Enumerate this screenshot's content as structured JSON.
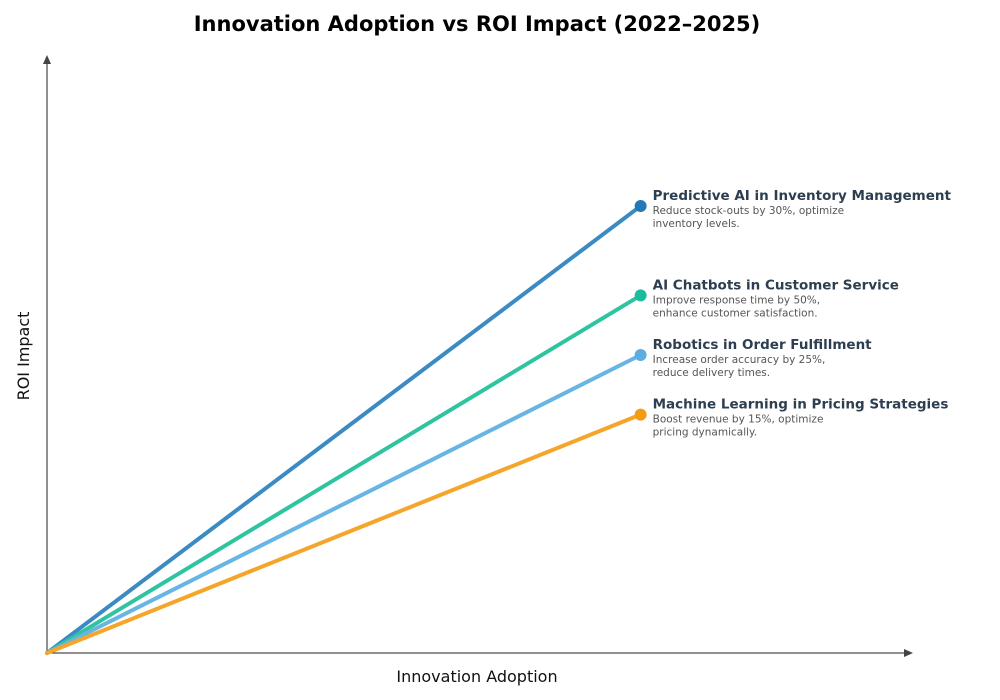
{
  "chart_data": {
    "type": "line",
    "title": "Innovation Adoption vs ROI Impact (2022–2025)",
    "xlabel": "Innovation Adoption",
    "ylabel": "ROI Impact",
    "xlim": [
      0,
      1.02
    ],
    "ylim": [
      0,
      1
    ],
    "grid": false,
    "ticks": false,
    "series": [
      {
        "name": "Predictive AI in Inventory Management",
        "description_line1": "Reduce stock-outs by 30%, optimize",
        "description_line2": "inventory levels.",
        "x": [
          0,
          0.7
        ],
        "y": [
          0,
          0.75
        ],
        "color": "#3a8bc2",
        "marker_color": "#2479b4"
      },
      {
        "name": "AI Chatbots in Customer Service",
        "description_line1": "Improve response time by 50%,",
        "description_line2": "enhance customer satisfaction.",
        "x": [
          0,
          0.7
        ],
        "y": [
          0,
          0.6
        ],
        "color": "#2ec4a0",
        "marker_color": "#1abc9c"
      },
      {
        "name": "Robotics in Order Fulfillment",
        "description_line1": "Increase order accuracy by 25%,",
        "description_line2": "reduce delivery times.",
        "x": [
          0,
          0.7
        ],
        "y": [
          0,
          0.5
        ],
        "color": "#66b5e4",
        "marker_color": "#5dade2"
      },
      {
        "name": "Machine Learning in Pricing Strategies",
        "description_line1": "Boost revenue by 15%, optimize",
        "description_line2": "pricing dynamically.",
        "x": [
          0,
          0.7
        ],
        "y": [
          0,
          0.4
        ],
        "color": "#f5a52a",
        "marker_color": "#f39c12"
      }
    ]
  }
}
